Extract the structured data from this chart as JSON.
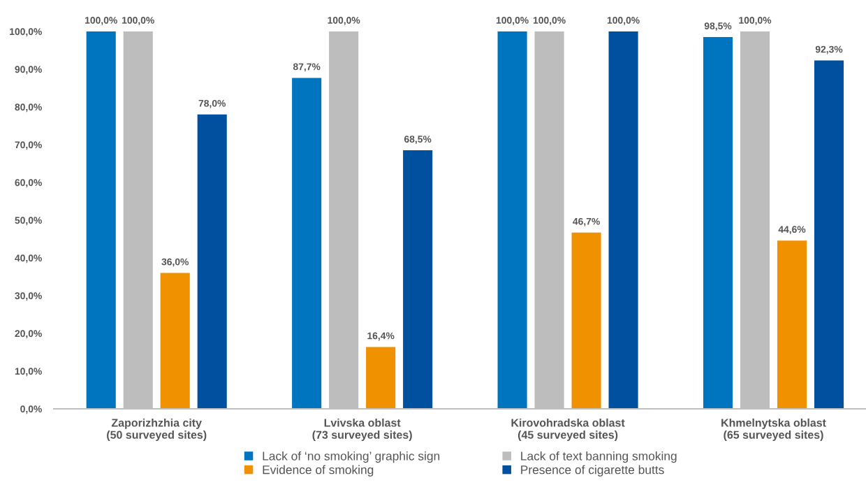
{
  "chart_data": {
    "type": "bar",
    "categories": [
      "Zaporizhzhia city\n(50 surveyed sites)",
      "Lvivska oblast\n(73 surveyed sites)",
      "Kirovohradska oblast\n(45 surveyed sites)",
      "Khmelnytska oblast\n(65 surveyed sites)"
    ],
    "series": [
      {
        "name": "Lack of ‘no smoking’ graphic sign",
        "color": "#0075bf",
        "values": [
          100.0,
          87.7,
          100.0,
          98.5
        ],
        "value_labels": [
          "100,0%",
          "87,7%",
          "100,0%",
          "98,5%"
        ]
      },
      {
        "name": "Lack of text banning smoking",
        "color": "#bdbdbd",
        "values": [
          100.0,
          100.0,
          100.0,
          100.0
        ],
        "value_labels": [
          "100,0%",
          "100,0%",
          "100,0%",
          "100,0%"
        ]
      },
      {
        "name": "Evidence of smoking",
        "color": "#f09100",
        "values": [
          36.0,
          16.4,
          46.7,
          44.6
        ],
        "value_labels": [
          "36,0%",
          "16,4%",
          "46,7%",
          "44,6%"
        ]
      },
      {
        "name": "Presence of cigarette butts",
        "color": "#0050a0",
        "values": [
          78.0,
          68.5,
          100.0,
          92.3
        ],
        "value_labels": [
          "78,0%",
          "68,5%",
          "100,0%",
          "92,3%"
        ]
      }
    ],
    "ylim": [
      0,
      100
    ],
    "yticks": [
      {
        "value": 0,
        "label": "0,0%"
      },
      {
        "value": 10,
        "label": "10,0%"
      },
      {
        "value": 20,
        "label": "20,0%"
      },
      {
        "value": 30,
        "label": "30,0%"
      },
      {
        "value": 40,
        "label": "40,0%"
      },
      {
        "value": 50,
        "label": "50,0%"
      },
      {
        "value": 60,
        "label": "60,0%"
      },
      {
        "value": 70,
        "label": "70,0%"
      },
      {
        "value": 80,
        "label": "80,0%"
      },
      {
        "value": 90,
        "label": "90,0%"
      },
      {
        "value": 100,
        "label": "100,0%"
      }
    ],
    "legend": "bottom"
  }
}
